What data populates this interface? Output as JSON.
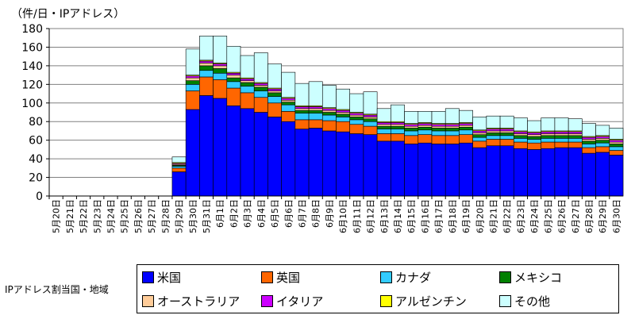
{
  "chart_data": {
    "type": "bar",
    "stacked": true,
    "unit_label": "（件/日・IPアドレス）",
    "ylim": [
      0,
      180
    ],
    "yticks": [
      0,
      20,
      40,
      60,
      80,
      100,
      120,
      140,
      160,
      180
    ],
    "grid": true,
    "legend_position": "bottom",
    "legend_title": "IPアドレス割当国・地域",
    "categories": [
      "5月20日",
      "5月21日",
      "5月22日",
      "5月23日",
      "5月24日",
      "5月25日",
      "5月26日",
      "5月27日",
      "5月28日",
      "5月29日",
      "5月30日",
      "5月31日",
      "6月1日",
      "6月2日",
      "6月3日",
      "6月4日",
      "6月5日",
      "6月6日",
      "6月7日",
      "6月8日",
      "6月9日",
      "6月10日",
      "6月11日",
      "6月12日",
      "6月13日",
      "6月14日",
      "6月15日",
      "6月16日",
      "6月17日",
      "6月18日",
      "6月19日",
      "6月20日",
      "6月21日",
      "6月22日",
      "6月23日",
      "6月24日",
      "6月25日",
      "6月26日",
      "6月27日",
      "6月28日",
      "6月29日",
      "6月30日"
    ],
    "series": [
      {
        "name": "米国",
        "color": "#0000ff",
        "values": [
          0,
          0,
          0,
          0,
          0,
          0,
          0,
          0,
          0,
          26,
          93,
          108,
          105,
          97,
          94,
          90,
          85,
          80,
          72,
          73,
          70,
          69,
          67,
          66,
          59,
          59,
          56,
          57,
          56,
          56,
          57,
          52,
          54,
          54,
          51,
          50,
          51,
          52,
          52,
          46,
          47,
          44
        ]
      },
      {
        "name": "英国",
        "color": "#ff6600",
        "values": [
          0,
          0,
          0,
          0,
          0,
          0,
          0,
          0,
          0,
          4,
          20,
          20,
          20,
          19,
          17,
          16,
          15,
          11,
          10,
          9,
          11,
          11,
          10,
          9,
          8,
          8,
          9,
          9,
          9,
          9,
          9,
          7,
          7,
          7,
          7,
          7,
          7,
          6,
          6,
          6,
          6,
          5
        ]
      },
      {
        "name": "カナダ",
        "color": "#33ccff",
        "values": [
          0,
          0,
          0,
          0,
          0,
          0,
          0,
          0,
          0,
          2,
          7,
          7,
          7,
          7,
          7,
          7,
          7,
          7,
          7,
          7,
          6,
          5,
          5,
          5,
          5,
          5,
          5,
          5,
          5,
          5,
          5,
          4,
          4,
          4,
          4,
          4,
          4,
          4,
          4,
          4,
          4,
          4
        ]
      },
      {
        "name": "メキシコ",
        "color": "#008000",
        "values": [
          0,
          0,
          0,
          0,
          0,
          0,
          0,
          0,
          0,
          1,
          4,
          5,
          5,
          4,
          4,
          4,
          4,
          3,
          3,
          3,
          3,
          3,
          3,
          3,
          3,
          3,
          3,
          3,
          3,
          3,
          3,
          3,
          3,
          3,
          3,
          3,
          3,
          3,
          3,
          3,
          3,
          3
        ]
      },
      {
        "name": "オーストラリア",
        "color": "#ffcc99",
        "values": [
          0,
          0,
          0,
          0,
          0,
          0,
          0,
          0,
          0,
          1,
          3,
          3,
          3,
          3,
          2,
          2,
          2,
          2,
          2,
          2,
          2,
          2,
          2,
          2,
          2,
          2,
          2,
          2,
          2,
          2,
          2,
          2,
          2,
          2,
          2,
          2,
          2,
          2,
          2,
          2,
          2,
          2
        ]
      },
      {
        "name": "イタリア",
        "color": "#cc00ff",
        "values": [
          0,
          0,
          0,
          0,
          0,
          0,
          0,
          0,
          0,
          1,
          2,
          2,
          2,
          2,
          2,
          2,
          2,
          2,
          2,
          2,
          2,
          2,
          2,
          2,
          2,
          2,
          2,
          2,
          2,
          2,
          2,
          2,
          2,
          2,
          2,
          2,
          2,
          2,
          2,
          2,
          2,
          2
        ]
      },
      {
        "name": "アルゼンチン",
        "color": "#ffff00",
        "values": [
          0,
          0,
          0,
          0,
          0,
          0,
          0,
          0,
          0,
          1,
          1,
          1,
          1,
          1,
          1,
          1,
          1,
          1,
          1,
          1,
          1,
          1,
          1,
          1,
          1,
          1,
          1,
          1,
          1,
          1,
          1,
          1,
          1,
          1,
          1,
          1,
          1,
          1,
          1,
          1,
          1,
          1
        ]
      },
      {
        "name": "その他",
        "color": "#ccffff",
        "values": [
          0,
          0,
          0,
          0,
          0,
          0,
          0,
          0,
          0,
          6,
          28,
          26,
          29,
          28,
          24,
          32,
          26,
          27,
          24,
          26,
          24,
          22,
          20,
          24,
          14,
          18,
          13,
          12,
          13,
          16,
          13,
          14,
          13,
          13,
          14,
          12,
          14,
          14,
          13,
          14,
          11,
          12
        ]
      }
    ]
  }
}
